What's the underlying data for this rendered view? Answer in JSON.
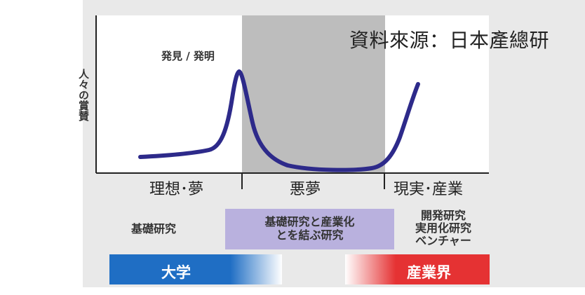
{
  "diagram": {
    "source_note": "資料來源：日本產總研",
    "y_axis_label": "人々の賞賛",
    "peak_label": "発見 / 発明",
    "phases": [
      {
        "label": "理想･夢"
      },
      {
        "label": "悪夢"
      },
      {
        "label": "現実･産業"
      }
    ],
    "research_stages": [
      {
        "label": "基礎研究"
      },
      {
        "label": "基礎研究と産業化\nとを結ぶ研究"
      },
      {
        "label": "開発研究\n実用化研究\nベンチャー"
      }
    ],
    "actors": [
      {
        "label": "大学"
      },
      {
        "label": "産業界"
      }
    ],
    "colors": {
      "curve": "#2d2a8a",
      "nightmare_band": "#bdbdbd",
      "middle_box": "#b9b1de",
      "university_bar": "#1f6ec4",
      "industry_bar": "#e53233"
    }
  }
}
